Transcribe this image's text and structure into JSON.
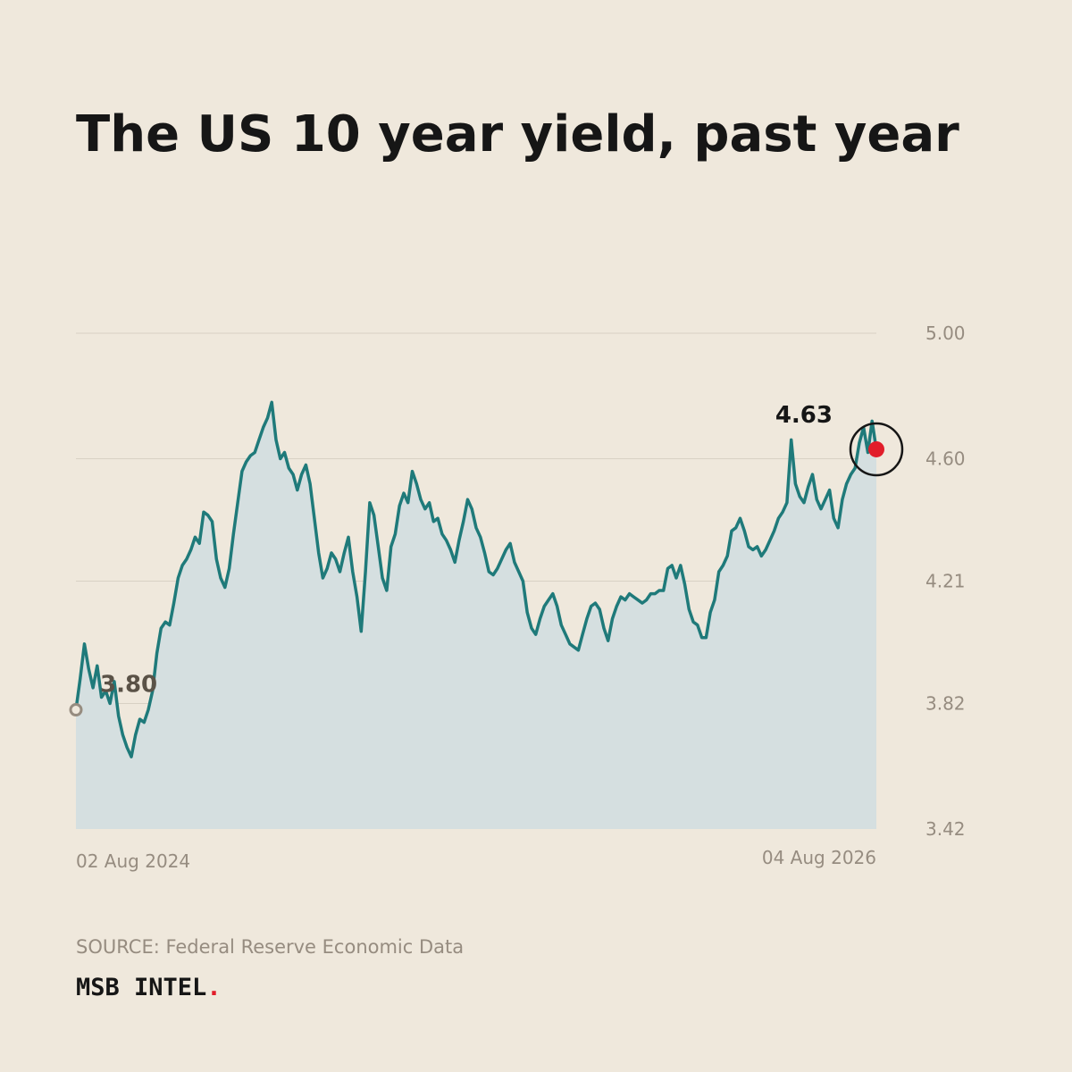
{
  "title": "The US 10 year yield, past year",
  "source": "SOURCE: Federal Reserve Economic Data",
  "brand": {
    "name": "MSB INTEL",
    "dot": "."
  },
  "colors": {
    "background": "#EFE8DC",
    "line": "#1F7A7A",
    "area": "#D5DFE0",
    "grid": "#D8D1C4",
    "end_marker": "#E11D2A",
    "start_marker": "#968C80"
  },
  "chart_data": {
    "type": "line",
    "title": "The US 10 year yield, past year",
    "xlabel": "",
    "ylabel": "",
    "x_start_label": "02 Aug 2024",
    "x_end_label": "04 Aug 2026",
    "yticks": [
      "3.42",
      "3.82",
      "4.21",
      "4.60",
      "5.00"
    ],
    "ylim": [
      3.42,
      5.0
    ],
    "grid": true,
    "start_value_label": "3.80",
    "end_value_label": "4.63",
    "series": [
      {
        "values": [
          3.8,
          3.9,
          4.01,
          3.93,
          3.87,
          3.94,
          3.84,
          3.86,
          3.82,
          3.89,
          3.78,
          3.72,
          3.68,
          3.65,
          3.72,
          3.77,
          3.76,
          3.8,
          3.86,
          3.98,
          4.06,
          4.08,
          4.07,
          4.14,
          4.22,
          4.26,
          4.28,
          4.31,
          4.35,
          4.33,
          4.43,
          4.42,
          4.4,
          4.28,
          4.22,
          4.19,
          4.25,
          4.36,
          4.46,
          4.56,
          4.59,
          4.61,
          4.62,
          4.66,
          4.7,
          4.73,
          4.78,
          4.66,
          4.6,
          4.62,
          4.57,
          4.55,
          4.5,
          4.55,
          4.58,
          4.52,
          4.41,
          4.3,
          4.22,
          4.25,
          4.3,
          4.28,
          4.24,
          4.3,
          4.35,
          4.24,
          4.16,
          4.05,
          4.24,
          4.46,
          4.42,
          4.32,
          4.22,
          4.18,
          4.32,
          4.36,
          4.45,
          4.49,
          4.46,
          4.56,
          4.52,
          4.47,
          4.44,
          4.46,
          4.4,
          4.41,
          4.36,
          4.34,
          4.31,
          4.27,
          4.34,
          4.4,
          4.47,
          4.44,
          4.38,
          4.35,
          4.3,
          4.24,
          4.23,
          4.25,
          4.28,
          4.31,
          4.33,
          4.27,
          4.24,
          4.21,
          4.11,
          4.06,
          4.04,
          4.09,
          4.13,
          4.15,
          4.17,
          4.13,
          4.07,
          4.04,
          4.01,
          4.0,
          3.99,
          4.04,
          4.09,
          4.13,
          4.14,
          4.12,
          4.06,
          4.02,
          4.09,
          4.13,
          4.16,
          4.15,
          4.17,
          4.16,
          4.15,
          4.14,
          4.15,
          4.17,
          4.17,
          4.18,
          4.18,
          4.25,
          4.26,
          4.22,
          4.26,
          4.2,
          4.12,
          4.08,
          4.07,
          4.03,
          4.03,
          4.11,
          4.15,
          4.24,
          4.26,
          4.29,
          4.37,
          4.38,
          4.41,
          4.37,
          4.32,
          4.31,
          4.32,
          4.29,
          4.31,
          4.34,
          4.37,
          4.41,
          4.43,
          4.46,
          4.66,
          4.52,
          4.48,
          4.46,
          4.51,
          4.55,
          4.47,
          4.44,
          4.47,
          4.5,
          4.41,
          4.38,
          4.47,
          4.52,
          4.55,
          4.57,
          4.65,
          4.7,
          4.62,
          4.72,
          4.63
        ]
      }
    ]
  }
}
